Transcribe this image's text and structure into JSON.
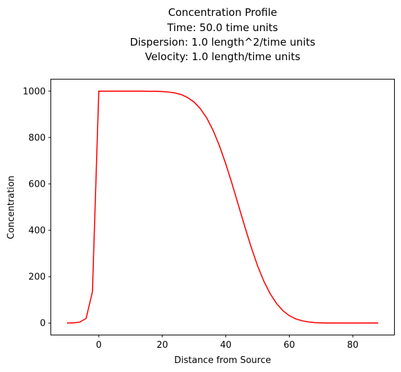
{
  "chart_data": {
    "type": "line",
    "title_lines": [
      "Concentration Profile",
      "Time: 50.0 time units",
      "Dispersion: 1.0 length^2/time units",
      "Velocity: 1.0 length/time units"
    ],
    "xlabel": "Distance from Source",
    "ylabel": "Concentration",
    "xlim": [
      -15,
      93
    ],
    "ylim": [
      -50,
      1050
    ],
    "xticks": [
      0,
      20,
      40,
      60,
      80
    ],
    "yticks": [
      0,
      200,
      400,
      600,
      800,
      1000
    ],
    "grid": false,
    "line_color": "#ff0000",
    "series": [
      {
        "x": [
          -10,
          -8,
          -6,
          -4,
          -2,
          0,
          2,
          4,
          6,
          8,
          10,
          12,
          14,
          16,
          18,
          20,
          22,
          24,
          26,
          28,
          30,
          32,
          34,
          36,
          38,
          40,
          42,
          44,
          46,
          48,
          50,
          52,
          54,
          56,
          58,
          60,
          62,
          64,
          66,
          68,
          70,
          72,
          74,
          76,
          78,
          80,
          82,
          84,
          86,
          88
        ],
        "y": [
          0,
          1,
          4,
          20,
          135,
          1000,
          1000,
          1000,
          1000,
          1000,
          1000,
          1000,
          1000,
          999,
          999,
          998,
          996,
          992,
          985,
          972,
          953,
          924,
          884,
          831,
          764,
          686,
          599,
          507,
          415,
          327,
          247,
          180,
          126,
          84,
          53,
          32,
          18,
          10,
          5,
          2,
          1,
          0,
          0,
          0,
          0,
          0,
          0,
          0,
          0,
          0
        ]
      }
    ]
  }
}
